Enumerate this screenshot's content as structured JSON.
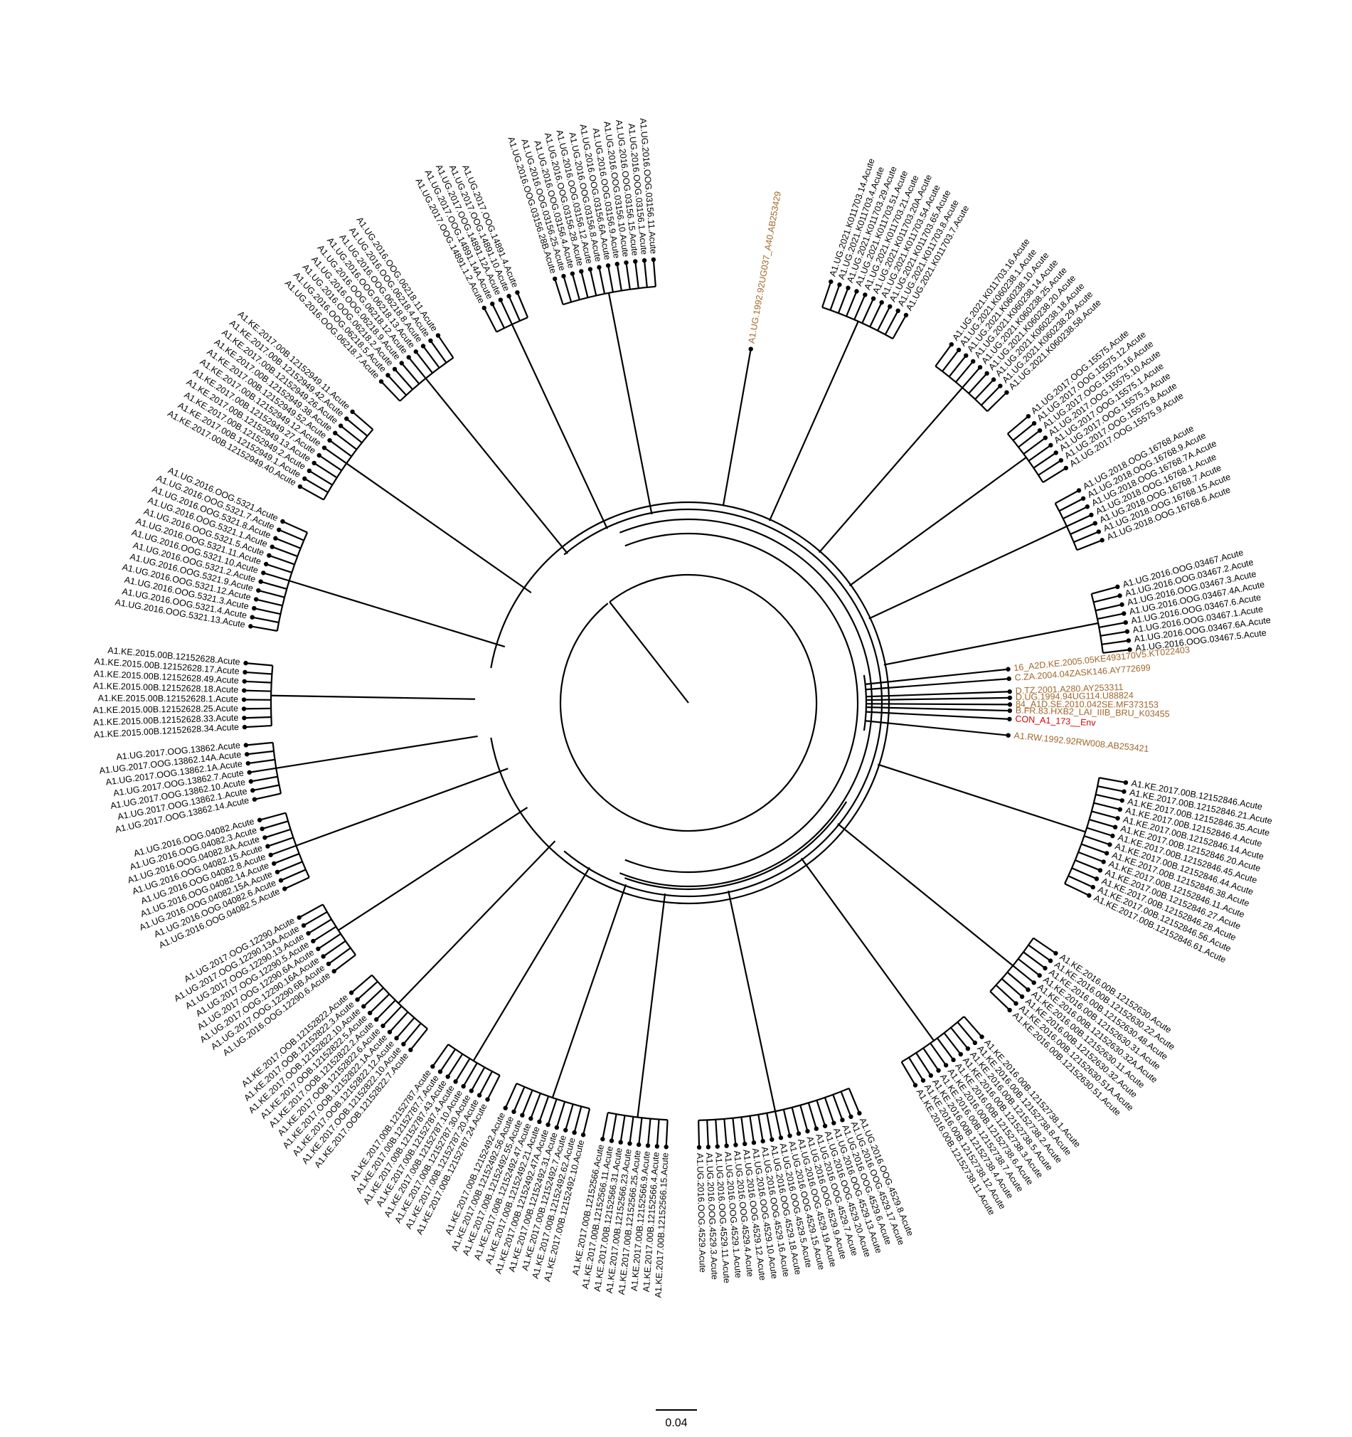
{
  "colors": {
    "default": "#000000",
    "reference": "#a0672a",
    "consensus": "#d40000"
  },
  "scale_bar": {
    "label": "0.04"
  },
  "clades": [
    {
      "name": "cl-0156",
      "dir": -101,
      "r": 290,
      "labels": [
        "A1.UG.2016.OOG.03156.28B.Acute",
        "A1.UG.2016.OOG.03156.25.Acute",
        "A1.UG.2016.OOG.03156.4.Acute",
        "A1.UG.2016.OOG.03156.28.Acute",
        "A1.UG.2016.OOG.03156.12.Acute",
        "A1.UG.2016.OOG.03156.8.Acute",
        "A1.UG.2016.OOG.03156.6A.Acute",
        "A1.UG.2016.OOG.03156.9.Acute",
        "A1.UG.2016.OOG.03156.10.Acute",
        "A1.UG.2016.OOG.03156.15.Acute",
        "A1.UG.2016.OOG.03156.1.Acute",
        "A1.UG.2016.OOG.03156.11.Acute"
      ]
    },
    {
      "name": "cl-4891",
      "dir": -115,
      "r": 290,
      "labels": [
        "A1.UG.2017.OOG.14891.1.2.Acute",
        "A1.UG.2017.OOG.14891.14A.Acute",
        "A1.UG.2017.OOG.14891.12A.Acute",
        "A1.UG.2017.OOG.14891.10.Acute",
        "A1.UG.2017.OOG.14891.4.Acute"
      ]
    },
    {
      "name": "cl-0218",
      "dir": -129,
      "r": 290,
      "labels": [
        "A1.UG.2016.OOG.06218.7.Acute",
        "A1.UG.2016.OOG.06218.5.Acute",
        "A1.UG.2016.OOG.06218.2.Acute",
        "A1.UG.2016.OOG.06218.9.Acute",
        "A1.UG.2016.OOG.06218.12.Acute",
        "A1.UG.2016.OOG.06218.13.Acute",
        "A1.UG.2016.OOG.06218.8.Acute",
        "A1.UG.2016.OOG.06218.4.Acute",
        "A1.UG.2016.OOG.06218.11.Acute"
      ]
    },
    {
      "name": "cl-2949",
      "dir": -145,
      "r": 290,
      "labels": [
        "A1.KE.2017.00B.12152949.40.Acute",
        "A1.KE.2017.00B.12152949.1.Acute",
        "A1.KE.2017.00B.12152949.2.Acute",
        "A1.KE.2017.00B.12152949.13.Acute",
        "A1.KE.2017.00B.12152949.27.Acute",
        "A1.KE.2017.00B.12152949.12.Acute",
        "A1.KE.2017.00B.12152949.52.Acute",
        "A1.KE.2017.00B.12152949.38.Acute",
        "A1.KE.2017.00B.12152949.26.Acute",
        "A1.KE.2017.00B.12152949.42.Acute",
        "A1.KE.2017.00B.12152949.11.Acute"
      ]
    },
    {
      "name": "cl-5321",
      "dir": -163,
      "r": 290,
      "labels": [
        "A1.UG.2016.OOG.5321.13.Acute",
        "A1.UG.2016.OOG.5321.4.Acute",
        "A1.UG.2016.OOG.5321.3.Acute",
        "A1.UG.2016.OOG.5321.12.Acute",
        "A1.UG.2016.OOG.5321.9.Acute",
        "A1.UG.2016.OOG.5321.2.Acute",
        "A1.UG.2016.OOG.5321.10.Acute",
        "A1.UG.2016.OOG.5321.11.Acute",
        "A1.UG.2016.OOG.5321.5.Acute",
        "A1.UG.2016.OOG.5321.1.Acute",
        "A1.UG.2016.OOG.5321.8.Acute",
        "A1.UG.2016.OOG.5321.7.Acute",
        "A1.UG.2016.OOG.5321.Acute"
      ]
    },
    {
      "name": "cl-2628",
      "dir": -179,
      "r": 320,
      "labels": [
        "A1.KE.2015.00B.12152628.34.Acute",
        "A1.KE.2015.00B.12152628.33.Acute",
        "A1.KE.2015.00B.12152628.25.Acute",
        "A1.KE.2015.00B.12152628.1.Acute",
        "A1.KE.2015.00B.12152628.18.Acute",
        "A1.KE.2015.00B.12152628.49.Acute",
        "A1.KE.2015.00B.12152628.17.Acute",
        "A1.KE.2015.00B.12152628.Acute"
      ]
    },
    {
      "name": "cl-3862",
      "dir": 171,
      "r": 320,
      "labels": [
        "A1.UG.2017.OOG.13862.14.Acute",
        "A1.UG.2017.OOG.13862.1.Acute",
        "A1.UG.2017.OOG.13862.10.Acute",
        "A1.UG.2017.OOG.13862.7.Acute",
        "A1.UG.2017.OOG.13862.1A.Acute",
        "A1.UG.2017.OOG.13862.14A.Acute",
        "A1.UG.2017.OOG.13862.Acute"
      ]
    },
    {
      "name": "cl-4082",
      "dir": 160,
      "r": 290,
      "labels": [
        "A1.UG.2016.OOG.04082.5.Acute",
        "A1.UG.2016.OOG.04082.6.Acute",
        "A1.UG.2016.OOG.04082.15A.Acute",
        "A1.UG.2016.OOG.04082.14.Acute",
        "A1.UG.2016.OOG.04082.8.Acute",
        "A1.UG.2016.OOG.04082.15.Acute",
        "A1.UG.2016.OOG.04082.8A.Acute",
        "A1.UG.2016.OOG.04082.3.Acute",
        "A1.UG.2016.OOG.04082.Acute"
      ]
    },
    {
      "name": "cl-2290",
      "dir": 147,
      "r": 290,
      "labels": [
        "A1.UG.2016.OOG.12290.6.Acute",
        "A1.UG.2017.OOG.12290.6B.Acute",
        "A1.UG.2017.OOG.12290.16A.Acute",
        "A1.UG.2017.OOG.12290.6A.Acute",
        "A1.UG.2017.OOG.12290.5.Acute",
        "A1.UG.2017.OOG.12290.13.Acute",
        "A1.UG.2017.OOG.12290.13A.Acute",
        "A1.UG.2017.OOG.12290.Acute"
      ]
    },
    {
      "name": "cl-2822",
      "dir": 134,
      "r": 290,
      "labels": [
        "A1.KE.2017.OOB.12152822.7.Acute",
        "A1.KE.2017.OOB.12152822.10.Acute",
        "A1.KE.2017.OOB.12152822.12.Acute",
        "A1.KE.2017.OOB.12152822.1A.Acute",
        "A1.KE.2017.OOB.12152822.6.Acute",
        "A1.KE.2017.OOB.12152822.2.Acute",
        "A1.KE.2017.OOB.12152822.5.Acute",
        "A1.KE.2017.OOB.12152822.10.Acute",
        "A1.KE.2017.OOB.12152822.3.Acute",
        "A1.KE.2017.OOB.12152822.Acute"
      ]
    },
    {
      "name": "cl-2787",
      "dir": 121,
      "r": 290,
      "labels": [
        "A1.KE.2017.00B.12152787.24.Acute",
        "A1.KE.2017.00B.12152787.20.Acute",
        "A1.KE.2017.00B.12152787.30.Acute",
        "A1.KE.2017.00B.12152787.10.Acute",
        "A1.KE.2017.00B.12152787.4.Acute",
        "A1.KE.2017.00B.12152787.43.Acute",
        "A1.KE.2017.00B.12152787.7.Acute",
        "A1.KE.2017.00B.12152787.Acute"
      ]
    },
    {
      "name": "cl-2492",
      "dir": 109,
      "r": 290,
      "labels": [
        "A1.KE.2017.00B.12152492.10.Acute",
        "A1.KE.2017.00B.12152492.62.Acute",
        "A1.KE.2017.00B.12152492.7.Acute",
        "A1.KE.2017.00B.12152492.31.Acute",
        "A1.KE.2017.00B.12152492.47A.Acute",
        "A1.KE.2017.00B.12152492.21.Acute",
        "A1.KE.2017.00B.12152492.47.Acute",
        "A1.KE.2017.00B.12152492.55.Acute",
        "A1.KE.2017.00B.12152492.56.Acute",
        "A1.KE.2017.00B.12152492.Acute"
      ]
    },
    {
      "name": "cl-2566",
      "dir": 97,
      "r": 290,
      "labels": [
        "A1.KE.2017.00B.12152566.15.Acute",
        "A1.KE.2017.00B.12152566.4.Acute",
        "A1.KE.2017.00B.12152566.9.Acute",
        "A1.KE.2017.00B.12152566.25.Acute",
        "A1.KE.2017.00B.12152566.23.Acute",
        "A1.KE.2017.00B.12152566.31.Acute",
        "A1.KE.2017.00B.12152566.11.Acute",
        "A1.KE.2017.00B.12152566.Acute"
      ]
    },
    {
      "name": "cl-4529",
      "dir": 78,
      "r": 290,
      "labels": [
        "A1.UG.2016.OOG.4529.8.Acute",
        "A1.UG.2016.OOG.4529.17.Acute",
        "A1.UG.2016.OOG.4529.6.Acute",
        "A1.UG.2016.OOG.4529.13.Acute",
        "A1.UG.2016.OOG.4529.20.Acute",
        "A1.UG.2016.OOG.4529.7.Acute",
        "A1.UG.2016.OOG.4529.9.Acute",
        "A1.UG.2016.OOG.4529.19.Acute",
        "A1.UG.2016.OOG.4529.15.Acute",
        "A1.UG.2016.OOG.4529.5.Acute",
        "A1.UG.2016.OOG.4529.18.Acute",
        "A1.UG.2016.OOG.4529.16.Acute",
        "A1.UG.2016.OOG.4529.10.Acute",
        "A1.UG.2016.OOG.4529.12.Acute",
        "A1.UG.2016.OOG.4529.4.Acute",
        "A1.UG.2016.OOG.4529.1.Acute",
        "A1.UG.2016.OOG.4529.11.Acute",
        "A1.UG.2016.OOG.4529.3.Acute",
        "A1.UG.2016.OOG.4529.Acute"
      ]
    },
    {
      "name": "cl-2738",
      "dir": 54,
      "r": 290,
      "labels": [
        "A1.KE.2016.00B.12152738.1.Acute",
        "A1.KE.2016.00B.12152738.8.Acute",
        "A1.KE.2016.00B.12152738.2.Acute",
        "A1.KE.2016.00B.12152738.5.Acute",
        "A1.KE.2016.00B.12152738.3.Acute",
        "A1.KE.2016.00B.12152738.6.Acute",
        "A1.KE.2016.00B.12152738.7.Acute",
        "A1.KE.2016.00B.12152738.4.Acute",
        "A1.KE.2016.00B.12152738.12.Acute",
        "A1.KE.2016.00B.12152738.11.Acute"
      ]
    },
    {
      "name": "cl-2630",
      "dir": 39,
      "r": 290,
      "labels": [
        "A1.KE.2016.00B.12152630.Acute",
        "A1.KE.2016.00B.12152630.22.Acute",
        "A1.KE.2016.00B.12152630.48.Acute",
        "A1.KE.2016.00B.12152630.31.Acute",
        "A1.KE.2016.00B.12152630.32A.Acute",
        "A1.KE.2016.00B.12152630.11.Acute",
        "A1.KE.2016.00B.12152630.32.Acute",
        "A1.KE.2016.00B.12152630.51A.Acute",
        "A1.KE.2016.00B.12152630.51.Acute"
      ]
    },
    {
      "name": "cl-2846",
      "dir": 18,
      "r": 300,
      "labels": [
        "A1.KE.2017.00B.12152846.Acute",
        "A1.KE.2017.00B.12152846.21.Acute",
        "A1.KE.2017.00B.12152846.35.Acute",
        "A1.KE.2017.00B.12152846.4.Acute",
        "A1.KE.2017.00B.12152846.14.Acute",
        "A1.KE.2017.00B.12152846.20.Acute",
        "A1.KE.2017.00B.12152846.45.Acute",
        "A1.KE.2017.00B.12152846.44.Acute",
        "A1.KE.2017.00B.12152846.38.Acute",
        "A1.KE.2017.00B.12152846.11.Acute",
        "A1.KE.2017.00B.12152846.27.Acute",
        "A1.KE.2017.00B.12152846.28.Acute",
        "A1.KE.2017.00B.12152846.56.Acute",
        "A1.KE.2017.00B.12152846.61.Acute"
      ]
    },
    {
      "name": "cl-3467",
      "dir": -11,
      "r": 300,
      "labels": [
        "A1.UG.2016.OOG.03467.Acute",
        "A1.UG.2016.OOG.03467.2.Acute",
        "A1.UG.2016.OOG.03467.3.Acute",
        "A1.UG.2016.OOG.03467.4A.Acute",
        "A1.UG.2016.OOG.03467.6.Acute",
        "A1.UG.2016.OOG.03467.1.Acute",
        "A1.UG.2016.OOG.03467.6A.Acute",
        "A1.UG.2016.OOG.03467.5.Acute"
      ]
    },
    {
      "name": "cl-6768",
      "dir": -25,
      "r": 300,
      "labels": [
        "A1.UG.2018.OOG.16768.Acute",
        "A1.UG.2018.OOG.16768.9.Acute",
        "A1.UG.2018.OOG.16768.7A.Acute",
        "A1.UG.2018.OOG.16768.1.Acute",
        "A1.UG.2018.OOG.16768.7.Acute",
        "A1.UG.2018.OOG.16768.15.Acute",
        "A1.UG.2018.OOG.16768.6.Acute"
      ]
    },
    {
      "name": "cl-5575",
      "dir": -36,
      "r": 300,
      "labels": [
        "A1.UG.2017.OOG.15575.Acute",
        "A1.UG.2017.OOG.15575.12.Acute",
        "A1.UG.2017.OOG.15575.16.Acute",
        "A1.UG.2017.OOG.15575.10.Acute",
        "A1.UG.2017.OOG.15575.1.Acute",
        "A1.UG.2017.OOG.15575.3.Acute",
        "A1.UG.2017.OOG.15575.8.Acute",
        "A1.UG.2017.OOG.15575.9.Acute"
      ]
    },
    {
      "name": "cl-60238",
      "dir": -49,
      "r": 300,
      "labels": [
        "A1.UG.2021.K011703.16.Acute",
        "A1.UG.2021.K060238.1.Acute",
        "A1.UG.2021.K060238.10.Acute",
        "A1.UG.2021.K060238.14.Acute",
        "A1.UG.2021.K060238.25.Acute",
        "A1.UG.2021.K060238.20.Acute",
        "A1.UG.2021.K060238.18.Acute",
        "A1.UG.2021.K060238.29.Acute",
        "A1.UG.2021.K060238.58.Acute"
      ]
    },
    {
      "name": "cl-11703",
      "dir": -66,
      "r": 300,
      "labels": [
        "A1.UG.2021.K011703.14.Acute",
        "A1.UG.2021.K011703.4.Acute",
        "A1.UG.2021.K011703.29.Acute",
        "A1.UG.2021.K011703.51.Acute",
        "A1.UG.2021.K011703.21.Acute",
        "A1.UG.2021.K011703.20A.Acute",
        "A1.UG.2021.K011703.54.Acute",
        "A1.UG.2021.K011703.65.Acute",
        "A1.UG.2021.K011703.8.Acute",
        "A1.UG.2021.K011703.7.Acute"
      ]
    }
  ],
  "references": [
    {
      "label": "A1.UG.1992.92UG037_A40.AB253429",
      "kind": "reference",
      "dir": -80
    },
    {
      "label": "16_A2D.KE.2005.05KE493170V5.KT022403",
      "kind": "reference",
      "dir": -6.0
    },
    {
      "label": "C.ZA.2004.04ZASK146.AY772699",
      "kind": "reference",
      "dir": -4.3
    },
    {
      "label": "D.TZ.2001.A280.AY253311",
      "kind": "reference",
      "dir": -2.0
    },
    {
      "label": "D.UG.1994.94UG114.U88824",
      "kind": "reference",
      "dir": -0.9
    },
    {
      "label": "84_A1D.SE.2010.042SE.MF373153",
      "kind": "reference",
      "dir": 0.3
    },
    {
      "label": "B.FR.83.HXB2_LAI_IIIB_BRU_K03455",
      "kind": "reference",
      "dir": 1.4
    },
    {
      "label": "CON_A1_173__Env",
      "kind": "consensus",
      "dir": 2.9
    },
    {
      "label": "A1.RW.1992.92RW008.AB253421",
      "kind": "reference",
      "dir": 5.8
    }
  ]
}
